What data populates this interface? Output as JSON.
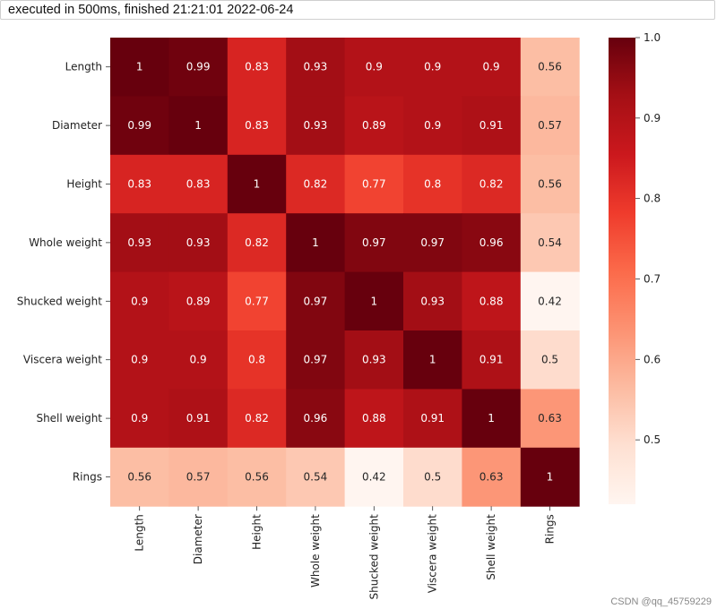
{
  "header": {
    "status_text": "executed in 500ms, finished 21:21:01 2022-06-24"
  },
  "watermark": "CSDN @qq_45759229",
  "chart_data": {
    "type": "heatmap",
    "title": "",
    "xlabel": "",
    "ylabel": "",
    "rows": [
      "Length",
      "Diameter",
      "Height",
      "Whole weight",
      "Shucked weight",
      "Viscera weight",
      "Shell weight",
      "Rings"
    ],
    "columns": [
      "Length",
      "Diameter",
      "Height",
      "Whole weight",
      "Shucked weight",
      "Viscera weight",
      "Shell weight",
      "Rings"
    ],
    "values": [
      [
        1,
        0.99,
        0.83,
        0.93,
        0.9,
        0.9,
        0.9,
        0.56
      ],
      [
        0.99,
        1,
        0.83,
        0.93,
        0.89,
        0.9,
        0.91,
        0.57
      ],
      [
        0.83,
        0.83,
        1,
        0.82,
        0.77,
        0.8,
        0.82,
        0.56
      ],
      [
        0.93,
        0.93,
        0.82,
        1,
        0.97,
        0.97,
        0.96,
        0.54
      ],
      [
        0.9,
        0.89,
        0.77,
        0.97,
        1,
        0.93,
        0.88,
        0.42
      ],
      [
        0.9,
        0.9,
        0.8,
        0.97,
        0.93,
        1,
        0.91,
        0.5
      ],
      [
        0.9,
        0.91,
        0.82,
        0.96,
        0.88,
        0.91,
        1,
        0.63
      ],
      [
        0.56,
        0.57,
        0.56,
        0.54,
        0.42,
        0.5,
        0.63,
        1
      ]
    ],
    "annotations": [
      [
        "1",
        "0.99",
        "0.83",
        "0.93",
        "0.9",
        "0.9",
        "0.9",
        "0.56"
      ],
      [
        "0.99",
        "1",
        "0.83",
        "0.93",
        "0.89",
        "0.9",
        "0.91",
        "0.57"
      ],
      [
        "0.83",
        "0.83",
        "1",
        "0.82",
        "0.77",
        "0.8",
        "0.82",
        "0.56"
      ],
      [
        "0.93",
        "0.93",
        "0.82",
        "1",
        "0.97",
        "0.97",
        "0.96",
        "0.54"
      ],
      [
        "0.9",
        "0.89",
        "0.77",
        "0.97",
        "1",
        "0.93",
        "0.88",
        "0.42"
      ],
      [
        "0.9",
        "0.9",
        "0.8",
        "0.97",
        "0.93",
        "1",
        "0.91",
        "0.5"
      ],
      [
        "0.9",
        "0.91",
        "0.82",
        "0.96",
        "0.88",
        "0.91",
        "1",
        "0.63"
      ],
      [
        "0.56",
        "0.57",
        "0.56",
        "0.54",
        "0.42",
        "0.5",
        "0.63",
        "1"
      ]
    ],
    "colormap": "Reds",
    "colorbar": {
      "range": [
        0.42,
        1.0
      ],
      "ticks": [
        0.5,
        0.6,
        0.7,
        0.8,
        0.9,
        1.0
      ],
      "tick_labels": [
        "0.5",
        "0.6",
        "0.7",
        "0.8",
        "0.9",
        "1.0"
      ]
    }
  }
}
